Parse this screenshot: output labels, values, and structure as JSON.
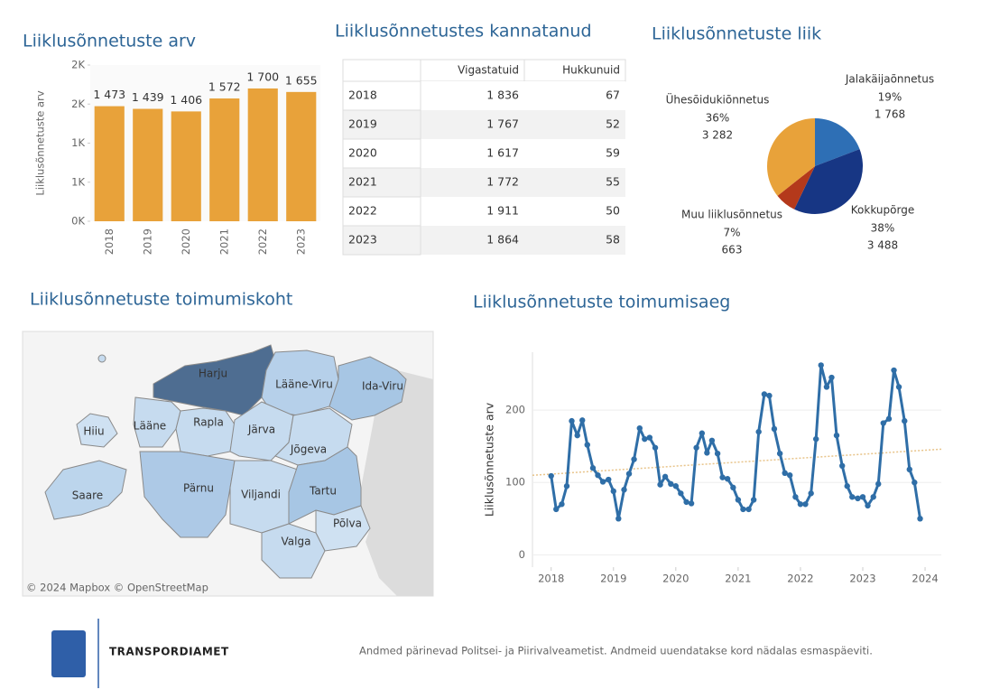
{
  "chart_data": [
    {
      "type": "bar",
      "title": "Liiklusõnnetuste arv",
      "ylabel": "Liiklusõnnetuste arv",
      "color": "#e8a23a",
      "categories": [
        "2018",
        "2019",
        "2020",
        "2021",
        "2022",
        "2023"
      ],
      "values": [
        1473,
        1439,
        1406,
        1572,
        1700,
        1655
      ],
      "value_labels": [
        "1 473",
        "1 439",
        "1 406",
        "1 572",
        "1 700",
        "1 655"
      ],
      "ylim": [
        0,
        2000
      ],
      "yticks": [
        {
          "value": 0,
          "label": "0K"
        },
        {
          "value": 500,
          "label": "1K"
        },
        {
          "value": 1000,
          "label": "1K"
        },
        {
          "value": 1500,
          "label": "2K"
        },
        {
          "value": 2000,
          "label": "2K"
        }
      ]
    },
    {
      "type": "pie",
      "title": "Liiklusõnnetuste liik",
      "categories": [
        "Jalakäijaõnnetus",
        "Kokkupõrge",
        "Muu liiklusõnnetus",
        "Ühesõidukiõnnetus"
      ],
      "values": [
        1768,
        3488,
        663,
        3282
      ],
      "value_labels": [
        "1 768",
        "3 488",
        "663",
        "3 282"
      ],
      "percent_labels": [
        "19%",
        "38%",
        "7%",
        "36%"
      ],
      "colors": [
        "#2e6fb5",
        "#173684",
        "#b4391b",
        "#e8a23a"
      ]
    },
    {
      "type": "line",
      "title": "Liiklusõnnetuste toimumisaeg",
      "ylabel": "Liiklusõnnetuste arv",
      "color": "#2f6ea7",
      "grid": true,
      "x": [
        2018.0,
        2018.08,
        2018.17,
        2018.25,
        2018.33,
        2018.42,
        2018.5,
        2018.58,
        2018.67,
        2018.75,
        2018.83,
        2018.92,
        2019.0,
        2019.08,
        2019.17,
        2019.25,
        2019.33,
        2019.42,
        2019.5,
        2019.58,
        2019.67,
        2019.75,
        2019.83,
        2019.92,
        2020.0,
        2020.08,
        2020.17,
        2020.25,
        2020.33,
        2020.42,
        2020.5,
        2020.58,
        2020.67,
        2020.75,
        2020.83,
        2020.92,
        2021.0,
        2021.08,
        2021.17,
        2021.25,
        2021.33,
        2021.42,
        2021.5,
        2021.58,
        2021.67,
        2021.75,
        2021.83,
        2021.92,
        2022.0,
        2022.08,
        2022.17,
        2022.25,
        2022.33,
        2022.42,
        2022.5,
        2022.58,
        2022.67,
        2022.75,
        2022.83,
        2022.92,
        2023.0,
        2023.08,
        2023.17,
        2023.25,
        2023.33,
        2023.42,
        2023.5,
        2023.58,
        2023.67,
        2023.75,
        2023.83,
        2023.92
      ],
      "values": [
        109,
        63,
        70,
        95,
        185,
        165,
        186,
        152,
        120,
        110,
        101,
        104,
        88,
        50,
        90,
        112,
        132,
        175,
        160,
        162,
        148,
        97,
        108,
        98,
        95,
        85,
        73,
        71,
        148,
        168,
        141,
        158,
        140,
        107,
        105,
        93,
        76,
        63,
        63,
        76,
        170,
        222,
        220,
        174,
        140,
        113,
        110,
        80,
        70,
        70,
        85,
        160,
        262,
        232,
        245,
        165,
        123,
        95,
        80,
        78,
        80,
        68,
        80,
        98,
        182,
        188,
        255,
        232,
        185,
        118,
        100,
        50
      ],
      "trend_line": [
        110,
        146
      ],
      "xlim": [
        2017.7,
        2024.26
      ],
      "ylim": [
        -17,
        280
      ],
      "xticks": [
        2018,
        2019,
        2020,
        2021,
        2022,
        2023,
        2024
      ],
      "yticks": [
        0,
        100,
        200
      ]
    }
  ],
  "table": {
    "title": "Liiklusõnnetustes kannatanud",
    "columns": [
      "Vigastatuid",
      "Hukkunuid"
    ],
    "rows": [
      [
        "2018",
        "1 836",
        67
      ],
      [
        "2019",
        "1 767",
        52
      ],
      [
        "2020",
        "1 617",
        59
      ],
      [
        "2021",
        "1 772",
        55
      ],
      [
        "2022",
        "1 911",
        50
      ],
      [
        "2023",
        "1 864",
        58
      ]
    ]
  },
  "map": {
    "title": "Liiklusõnnetuste toimumiskoht",
    "attribution": "© 2024 Mapbox © OpenStreetMap",
    "regions": [
      "Harju",
      "Lääne-Viru",
      "Ida-Viru",
      "Hiiu",
      "Lääne",
      "Rapla",
      "Järva",
      "Jõgeva",
      "Saare",
      "Pärnu",
      "Viljandi",
      "Tartu",
      "Põlva",
      "Valga"
    ]
  },
  "footer": {
    "logo": "Transpordiamet",
    "note": "Andmed pärinevad Politsei- ja Piirivalveametist. Andmeid uuendatakse kord nädalas esmaspäeviti."
  }
}
